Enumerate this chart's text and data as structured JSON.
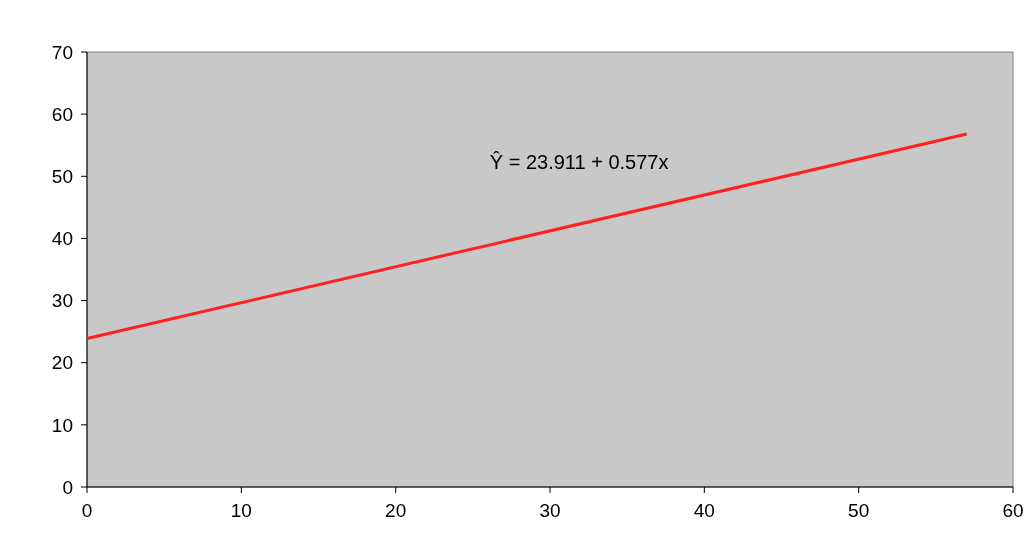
{
  "chart_data": {
    "type": "line",
    "x": [
      0,
      57
    ],
    "series": [
      {
        "color": "#ff2020",
        "values": [
          23.9,
          56.8
        ]
      }
    ],
    "xlim": [
      0,
      60
    ],
    "xticks": [
      0,
      10,
      20,
      30,
      40,
      50,
      60
    ],
    "ylim": [
      0,
      70
    ],
    "yticks": [
      0,
      10,
      20,
      30,
      40,
      50,
      60,
      70
    ],
    "grid": false,
    "marker": "none",
    "line_style": "solid",
    "annotations": [
      "Ŷ =  23.911 + 0.577x"
    ]
  }
}
